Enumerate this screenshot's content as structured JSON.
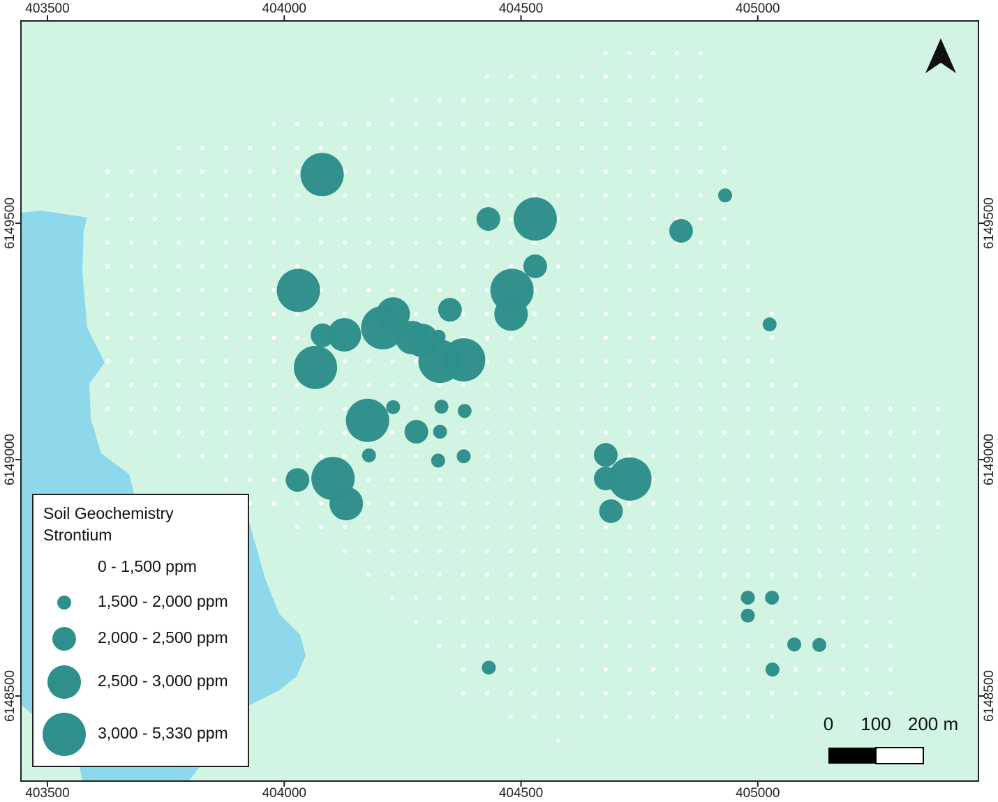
{
  "map": {
    "xlim": [
      403444,
      405466
    ],
    "ylim": [
      6148320,
      6149928
    ],
    "xticks": [
      403500,
      404000,
      404500,
      405000
    ],
    "yticks": [
      6148500,
      6149000,
      6149500
    ],
    "legend": {
      "title": [
        "Soil Geochemistry",
        "Strontium"
      ],
      "items": [
        "0 - 1,500 ppm",
        "1,500 - 2,000 ppm",
        "2,000 - 2,500 ppm",
        "2,500 - 3,000 ppm",
        "3,000 - 5,330 ppm"
      ]
    },
    "scale": {
      "labels": [
        "0",
        "100",
        "200 m"
      ]
    },
    "color": "#2f8f8b",
    "points": [
      {
        "x": 404080,
        "y": 6149603,
        "class": 4
      },
      {
        "x": 404931,
        "y": 6149559,
        "class": 1
      },
      {
        "x": 404431,
        "y": 6149509,
        "class": 2
      },
      {
        "x": 404530,
        "y": 6149509,
        "class": 4
      },
      {
        "x": 404838,
        "y": 6149484,
        "class": 2
      },
      {
        "x": 404530,
        "y": 6149409,
        "class": 2
      },
      {
        "x": 404030,
        "y": 6149358,
        "class": 4
      },
      {
        "x": 404481,
        "y": 6149358,
        "class": 4
      },
      {
        "x": 404350,
        "y": 6149317,
        "class": 2
      },
      {
        "x": 404479,
        "y": 6149308,
        "class": 3
      },
      {
        "x": 404230,
        "y": 6149308,
        "class": 3
      },
      {
        "x": 404208,
        "y": 6149279,
        "class": 4
      },
      {
        "x": 405025,
        "y": 6149286,
        "class": 1
      },
      {
        "x": 404081,
        "y": 6149263,
        "class": 2
      },
      {
        "x": 404127,
        "y": 6149264,
        "class": 3
      },
      {
        "x": 404270,
        "y": 6149258,
        "class": 3
      },
      {
        "x": 404291,
        "y": 6149252,
        "class": 3
      },
      {
        "x": 404326,
        "y": 6149260,
        "class": 1
      },
      {
        "x": 404066,
        "y": 6149195,
        "class": 4
      },
      {
        "x": 404329,
        "y": 6149208,
        "class": 4
      },
      {
        "x": 404379,
        "y": 6149211,
        "class": 4
      },
      {
        "x": 404176,
        "y": 6149083,
        "class": 4
      },
      {
        "x": 404230,
        "y": 6149111,
        "class": 1
      },
      {
        "x": 404332,
        "y": 6149112,
        "class": 1
      },
      {
        "x": 404381,
        "y": 6149103,
        "class": 1
      },
      {
        "x": 404279,
        "y": 6149059,
        "class": 2
      },
      {
        "x": 404329,
        "y": 6149059,
        "class": 1
      },
      {
        "x": 404179,
        "y": 6149009,
        "class": 1
      },
      {
        "x": 404325,
        "y": 6148998,
        "class": 1
      },
      {
        "x": 404379,
        "y": 6149007,
        "class": 1
      },
      {
        "x": 404679,
        "y": 6149010,
        "class": 2
      },
      {
        "x": 404028,
        "y": 6148957,
        "class": 2
      },
      {
        "x": 404103,
        "y": 6148960,
        "class": 4
      },
      {
        "x": 404679,
        "y": 6148960,
        "class": 2
      },
      {
        "x": 404730,
        "y": 6148959,
        "class": 4
      },
      {
        "x": 404131,
        "y": 6148907,
        "class": 3
      },
      {
        "x": 404690,
        "y": 6148891,
        "class": 2
      },
      {
        "x": 404979,
        "y": 6148708,
        "class": 1
      },
      {
        "x": 405030,
        "y": 6148708,
        "class": 1
      },
      {
        "x": 404979,
        "y": 6148670,
        "class": 1
      },
      {
        "x": 405077,
        "y": 6148609,
        "class": 1
      },
      {
        "x": 405130,
        "y": 6148608,
        "class": 1
      },
      {
        "x": 404432,
        "y": 6148560,
        "class": 1
      },
      {
        "x": 405031,
        "y": 6148556,
        "class": 1
      }
    ]
  }
}
